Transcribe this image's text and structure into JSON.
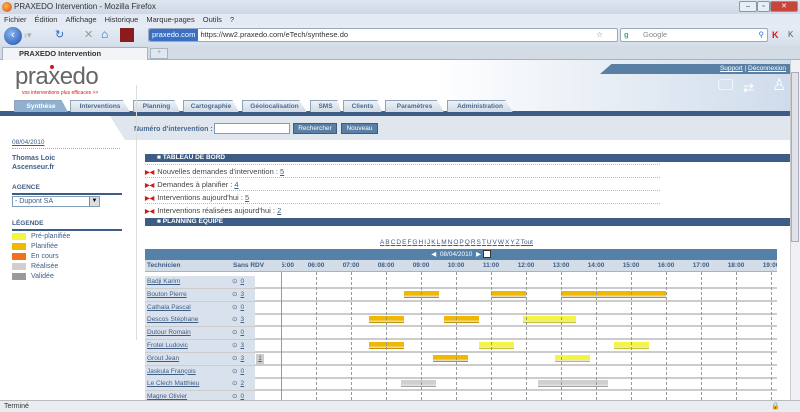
{
  "window": {
    "title": "PRAXEDO Intervention - Mozilla Firefox"
  },
  "menu": [
    "Fichier",
    "Édition",
    "Affichage",
    "Historique",
    "Marque-pages",
    "Outils",
    "?"
  ],
  "browser": {
    "site_badge": "praxedo.com",
    "url": "https://ww2.praxedo.com/eTech/synthese.do",
    "search_placeholder": "Google",
    "tab_title": "PRAXEDO Intervention",
    "status": "Terminé"
  },
  "header": {
    "logo": "praxedo",
    "tagline": "vos interventions plus efficaces >>",
    "support": "Support",
    "separator": "|",
    "logout": "Déconnexion"
  },
  "tabs": [
    "Synthèse",
    "Interventions",
    "Planning",
    "Cartographie",
    "Géolocalisation",
    "SMS",
    "Clients",
    "Paramètres",
    "Administration"
  ],
  "search": {
    "label": "Numéro d'intervention :",
    "value": "",
    "search_button": "Rechercher",
    "new_button": "Nouveau"
  },
  "sidebar": {
    "date": "08/04/2010",
    "user": "Thomas Loic",
    "company": "Ascenseur.fr",
    "agency_title": "AGENCE",
    "agency_value": "- Dupont SA",
    "legend_title": "LÉGENDE",
    "legend": [
      {
        "label": "Pré-planifiée",
        "color": "#f4f442"
      },
      {
        "label": "Planifiée",
        "color": "#f0b800"
      },
      {
        "label": "En cours",
        "color": "#f07020"
      },
      {
        "label": "Réalisée",
        "color": "#cfcfcf"
      },
      {
        "label": "Validée",
        "color": "#9a9a9a"
      }
    ]
  },
  "dashboard": {
    "title": "TABLEAU DE BORD",
    "items": [
      {
        "label": "Nouvelles demandes d'intervention :",
        "value": "5"
      },
      {
        "label": "Demandes à planifier :",
        "value": "4"
      },
      {
        "label": "Interventions aujourd'hui :",
        "value": "5"
      },
      {
        "label": "Interventions réalisées aujourd'hui :",
        "value": "2"
      }
    ]
  },
  "planning": {
    "title": "PLANNING EQUIPE",
    "letters": [
      "A",
      "B",
      "C",
      "D",
      "E",
      "F",
      "G",
      "H",
      "I",
      "J",
      "K",
      "L",
      "M",
      "N",
      "O",
      "P",
      "Q",
      "R",
      "S",
      "T",
      "U",
      "V",
      "W",
      "X",
      "Y",
      "Z",
      "Tout"
    ],
    "date": "08/04/2010",
    "col_technicien": "Technicien",
    "col_sans_rdv": "Sans RDV",
    "hours": [
      "05:00",
      "06:00",
      "07:00",
      "08:00",
      "09:00",
      "10:00",
      "11:00",
      "12:00",
      "13:00",
      "14:00",
      "15:00",
      "16:00",
      "17:00",
      "18:00",
      "19:00"
    ],
    "technicians": [
      {
        "name": "Badji Karim",
        "count": "0",
        "sans_rdv": "",
        "bars": []
      },
      {
        "name": "Bouton Pierre",
        "count": "3",
        "sans_rdv": "",
        "bars": [
          {
            "start": "08:30",
            "end": "09:30",
            "status": "Planifiée"
          },
          {
            "start": "11:00",
            "end": "12:00",
            "status": "Planifiée"
          },
          {
            "start": "13:00",
            "end": "16:00",
            "status": "Planifiée"
          }
        ]
      },
      {
        "name": "Cathala Pascal",
        "count": "0",
        "sans_rdv": "",
        "bars": []
      },
      {
        "name": "Descos Stéphane",
        "count": "3",
        "sans_rdv": "",
        "bars": [
          {
            "start": "07:30",
            "end": "08:30",
            "status": "Planifiée"
          },
          {
            "start": "09:40",
            "end": "10:40",
            "status": "Planifiée"
          },
          {
            "start": "11:55",
            "end": "13:25",
            "status": "Pré-planifiée"
          }
        ]
      },
      {
        "name": "Dutour Romain",
        "count": "0",
        "sans_rdv": "",
        "bars": []
      },
      {
        "name": "Frotel Ludovic",
        "count": "3",
        "sans_rdv": "",
        "bars": [
          {
            "start": "07:30",
            "end": "08:30",
            "status": "Planifiée"
          },
          {
            "start": "10:40",
            "end": "11:40",
            "status": "Pré-planifiée"
          },
          {
            "start": "14:30",
            "end": "15:30",
            "status": "Pré-planifiée"
          }
        ]
      },
      {
        "name": "Grout Jean",
        "count": "3",
        "sans_rdv": "1",
        "bars": [
          {
            "start": "09:20",
            "end": "10:20",
            "status": "Planifiée"
          },
          {
            "start": "12:50",
            "end": "13:50",
            "status": "Pré-planifiée"
          }
        ]
      },
      {
        "name": "Jaskula François",
        "count": "0",
        "sans_rdv": "",
        "bars": []
      },
      {
        "name": "Le Clech Matthieu",
        "count": "2",
        "sans_rdv": "",
        "bars": [
          {
            "start": "08:25",
            "end": "09:25",
            "status": "Réalisée"
          },
          {
            "start": "12:20",
            "end": "14:20",
            "status": "Réalisée"
          }
        ]
      },
      {
        "name": "Magne Olivier",
        "count": "0",
        "sans_rdv": "",
        "bars": []
      }
    ]
  }
}
